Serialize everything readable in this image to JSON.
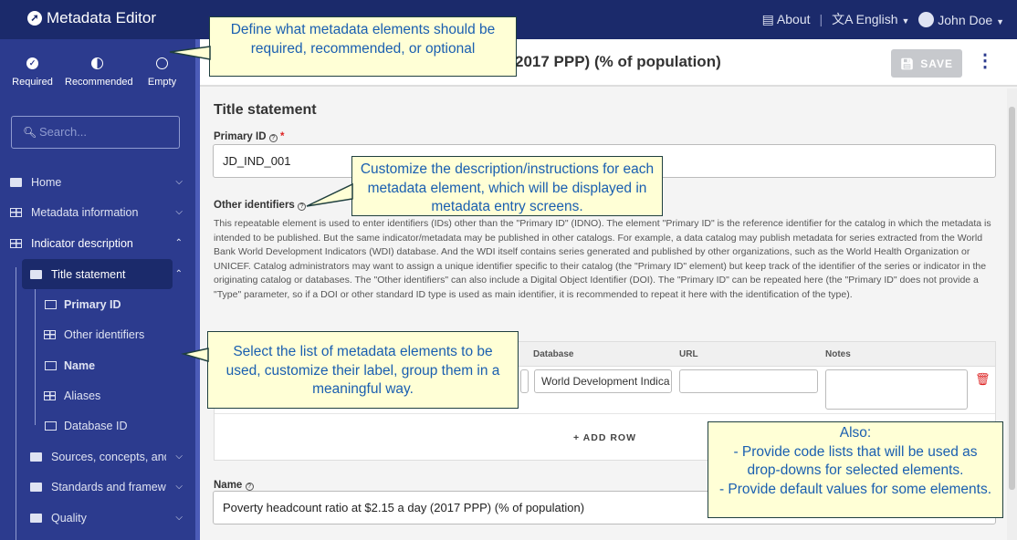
{
  "app": {
    "title": "Metadata Editor"
  },
  "topbar": {
    "about": "About",
    "separator": "|",
    "language": "English",
    "user": "John Doe"
  },
  "filters": [
    {
      "label": "Required",
      "icon": "check-circle-icon"
    },
    {
      "label": "Recommended",
      "icon": "half-circle-icon"
    },
    {
      "label": "Empty",
      "icon": "empty-circle-icon"
    }
  ],
  "search": {
    "placeholder": "Search..."
  },
  "nav": {
    "home": "Home",
    "metadata_info": "Metadata information",
    "indicator_desc": "Indicator description",
    "title_statement": "Title statement",
    "primary_id": "Primary ID",
    "other_identifiers": "Other identifiers",
    "name": "Name",
    "aliases": "Aliases",
    "database_id": "Database ID",
    "sources": "Sources, concepts, and r",
    "standards": "Standards and framewor",
    "quality": "Quality"
  },
  "header": {
    "title": "2017 PPP) (% of population)",
    "save": "SAVE"
  },
  "section": {
    "title": "Title statement"
  },
  "primary_id": {
    "label": "Primary ID",
    "value": "JD_IND_001"
  },
  "other_identifiers": {
    "label": "Other identifiers",
    "description": "This repeatable element is used to enter identifiers (IDs) other than the \"Primary ID\" (IDNO). The element \"Primary ID\" is the reference identifier for the catalog in which the metadata is intended to be published. But the same indicator/metadata may be published in other catalogs. For example, a data catalog may publish metadata for series extracted from the World Bank World Development Indicators (WDI) database. And the WDI itself contains series generated and published by other organizations, such as the World Health Organization or UNICEF. Catalog administrators may want to assign a unique identifier specific to their catalog (the \"Primary ID\" element) but keep track of the identifier of the series or indicator in the originating catalog or databases. The \"Other identifiers\" can also include a Digital Object Identifier (DOI). The \"Primary ID\" can be repeated here (the \"Primary ID\" does not provide a \"Type\" parameter, so if a DOI or other standard ID type is used as main identifier, it is recommended to repeat it here with the identification of the type).",
    "columns": [
      "Database",
      "URL",
      "Notes"
    ],
    "row": {
      "database": "World Development Indica",
      "url": "",
      "notes": ""
    },
    "add_row": "ADD ROW"
  },
  "name": {
    "label": "Name",
    "value": "Poverty headcount ratio at $2.15 a day (2017 PPP) (% of population)"
  },
  "callouts": {
    "c1": "Define what metadata elements should be required, recommended, or optional",
    "c2": "Customize the description/instructions for each metadata element, which will be displayed in metadata entry screens.",
    "c3": "Select the list of metadata elements to be used, customize their label, group them in a meaningful way.",
    "c4_lines": [
      "Also:",
      "- Provide code lists that will be used as drop-downs for selected elements.",
      "- Provide default values for some elements."
    ]
  },
  "colors": {
    "topbar": "#1b2a6b",
    "sidebar": "#2c3b8e",
    "callout_bg": "#ffffd6",
    "callout_text": "#1a5fb0"
  }
}
